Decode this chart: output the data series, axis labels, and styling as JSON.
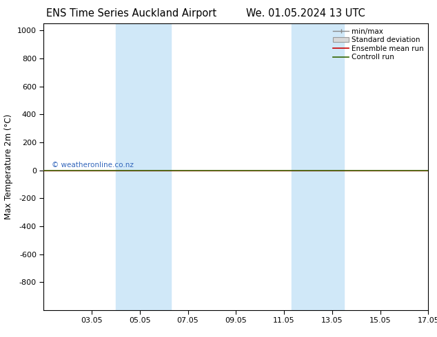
{
  "title_left": "ENS Time Series Auckland Airport",
  "title_right": "We. 01.05.2024 13 UTC",
  "ylabel": "Max Temperature 2m (°C)",
  "ylim_top": -1000,
  "ylim_bottom": 1050,
  "yticks": [
    -800,
    -600,
    -400,
    -200,
    0,
    200,
    400,
    600,
    800,
    1000
  ],
  "xtick_labels": [
    "03.05",
    "05.05",
    "07.05",
    "09.05",
    "11.05",
    "13.05",
    "15.05",
    "17.05"
  ],
  "xtick_positions": [
    2,
    4,
    6,
    8,
    10,
    12,
    14,
    16
  ],
  "xlim": [
    0,
    16
  ],
  "shaded_regions": [
    {
      "xmin": 3.0,
      "xmax": 5.3,
      "color": "#d0e8f8"
    },
    {
      "xmin": 10.3,
      "xmax": 12.5,
      "color": "#d0e8f8"
    }
  ],
  "green_line_y": 0,
  "red_line_y": 0,
  "horizontal_line_color_red": "#cc0000",
  "horizontal_line_color_green": "#336600",
  "background_color": "#ffffff",
  "plot_bg_color": "#ffffff",
  "watermark_text": "© weatheronline.co.nz",
  "watermark_color": "#3366bb",
  "legend_entries": [
    {
      "label": "min/max",
      "color": "#888888"
    },
    {
      "label": "Standard deviation",
      "color": "#bbbbbb"
    },
    {
      "label": "Ensemble mean run",
      "color": "#cc0000"
    },
    {
      "label": "Controll run",
      "color": "#336600"
    }
  ],
  "title_fontsize": 10.5,
  "axis_label_fontsize": 8.5,
  "tick_fontsize": 8,
  "legend_fontsize": 7.5
}
